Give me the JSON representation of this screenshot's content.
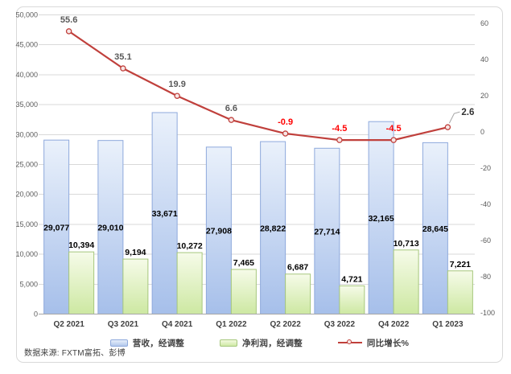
{
  "chart_data": {
    "type": "combo",
    "title": "",
    "categories": [
      "Q2 2021",
      "Q3 2021",
      "Q4 2021",
      "Q1 2022",
      "Q2 2022",
      "Q3 2022",
      "Q4 2022",
      "Q1 2023"
    ],
    "series": [
      {
        "name": "营收，经调整",
        "type": "bar",
        "axis": "left",
        "values": [
          29077,
          29010,
          33671,
          27908,
          28822,
          27714,
          32165,
          28645
        ]
      },
      {
        "name": "净利润，经调整",
        "type": "bar",
        "axis": "left",
        "values": [
          10394,
          9194,
          10272,
          7465,
          6687,
          4721,
          10713,
          7221
        ]
      },
      {
        "name": "同比增长%",
        "type": "line",
        "axis": "right",
        "values": [
          55.6,
          35.1,
          19.9,
          6.6,
          -0.9,
          -4.5,
          -4.5,
          2.6
        ]
      }
    ],
    "left_axis": {
      "min": 0,
      "max": 50000,
      "step": 5000,
      "tick_labels": [
        "0",
        "5,000",
        "10,000",
        "15,000",
        "20,000",
        "25,000",
        "30,000",
        "35,000",
        "40,000",
        "45,000",
        "50,000"
      ]
    },
    "right_axis": {
      "min": -100,
      "max": 60,
      "step": 20,
      "tick_labels": [
        "60",
        "40",
        "20",
        "0",
        "-20",
        "-40",
        "-60",
        "-80",
        "-100"
      ]
    },
    "grid": true,
    "legend_position": "bottom",
    "colors": {
      "revenue_fill_top": "#EAF1FB",
      "revenue_fill_bottom": "#A6BFEA",
      "revenue_border": "#8EA9DC",
      "profit_fill_top": "#F6FBE9",
      "profit_fill_bottom": "#CDE8A2",
      "profit_border": "#A6C77D",
      "line": "#C0403C",
      "marker_fill": "#F7E6E5",
      "line_label_positive": "#595959",
      "line_label_negative": "#FF0000",
      "line_label_last": "#333333",
      "bar_label": "#000000",
      "grid": "#D9D9D9",
      "axis_line": "#A6A6A6",
      "axis_text": "#595959",
      "category_text": "#3F3F3F"
    }
  },
  "source": {
    "label": "数据来源: FXTM富拓、彭博"
  }
}
